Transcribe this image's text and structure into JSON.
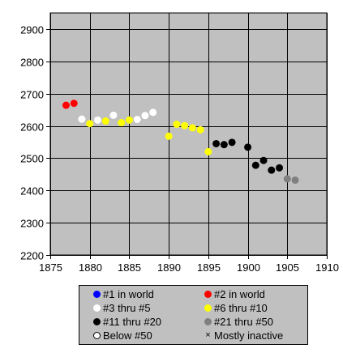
{
  "chart_data": {
    "type": "scatter",
    "title": "",
    "xlabel": "",
    "ylabel": "",
    "xlim": [
      1875,
      1910
    ],
    "ylim": [
      2200,
      2950
    ],
    "x_ticks": [
      1875,
      1880,
      1885,
      1890,
      1895,
      1900,
      1905,
      1910
    ],
    "y_ticks": [
      2200,
      2300,
      2400,
      2500,
      2600,
      2700,
      2800,
      2900
    ],
    "grid": true,
    "background": "#c0c0c0",
    "legend_position": "bottom",
    "series": [
      {
        "name": "#1 in world",
        "color": "#0000ff",
        "style": "filled",
        "points": []
      },
      {
        "name": "#2 in world",
        "color": "#ff0000",
        "style": "filled",
        "points": [
          [
            1877,
            2664
          ],
          [
            1878,
            2670
          ]
        ]
      },
      {
        "name": "#3 thru #5",
        "color": "#ffffff",
        "style": "filled",
        "points": [
          [
            1879,
            2621
          ],
          [
            1881,
            2618
          ],
          [
            1883,
            2633
          ],
          [
            1886,
            2620
          ],
          [
            1887,
            2632
          ],
          [
            1888,
            2642
          ]
        ]
      },
      {
        "name": "#6 thru #10",
        "color": "#ffff00",
        "style": "filled",
        "points": [
          [
            1880,
            2607
          ],
          [
            1882,
            2615
          ],
          [
            1884,
            2610
          ],
          [
            1885,
            2618
          ],
          [
            1890,
            2568
          ],
          [
            1891,
            2605
          ],
          [
            1892,
            2601
          ],
          [
            1893,
            2594
          ],
          [
            1894,
            2588
          ],
          [
            1895,
            2520
          ]
        ]
      },
      {
        "name": "#11 thru #20",
        "color": "#000000",
        "style": "filled",
        "points": [
          [
            1896,
            2545
          ],
          [
            1897,
            2542
          ],
          [
            1898,
            2549
          ],
          [
            1900,
            2534
          ],
          [
            1901,
            2478
          ],
          [
            1902,
            2493
          ],
          [
            1903,
            2463
          ],
          [
            1904,
            2470
          ]
        ]
      },
      {
        "name": "#21 thru #50",
        "color": "#808080",
        "style": "filled",
        "points": [
          [
            1905,
            2436
          ],
          [
            1906,
            2432
          ]
        ]
      },
      {
        "name": "Below #50",
        "color": "#000000",
        "style": "hollow",
        "points": []
      },
      {
        "name": "Mostly inactive",
        "color": "#000000",
        "style": "cross",
        "points": []
      }
    ]
  }
}
